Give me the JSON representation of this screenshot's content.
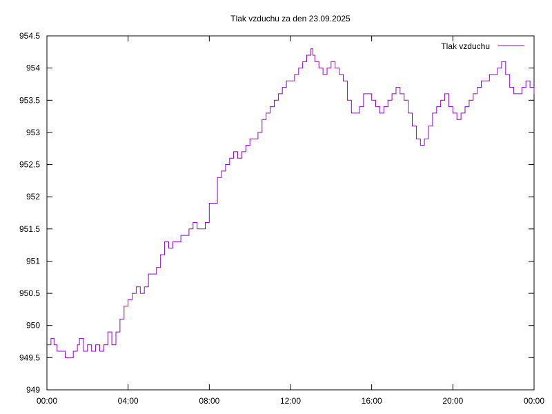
{
  "chart_data": {
    "type": "line",
    "title": "Tlak vzduchu za den 23.09.2025",
    "xlabel": "",
    "ylabel": "",
    "xlim": [
      0,
      24
    ],
    "ylim": [
      949,
      954.5
    ],
    "grid": false,
    "legend_position": "top-right",
    "x_ticks": [
      {
        "value": 0,
        "label": "00:00"
      },
      {
        "value": 4,
        "label": "04:00"
      },
      {
        "value": 8,
        "label": "08:00"
      },
      {
        "value": 12,
        "label": "12:00"
      },
      {
        "value": 16,
        "label": "16:00"
      },
      {
        "value": 20,
        "label": "20:00"
      },
      {
        "value": 24,
        "label": "00:00"
      }
    ],
    "y_ticks": [
      {
        "value": 949,
        "label": "949"
      },
      {
        "value": 949.5,
        "label": "949.5"
      },
      {
        "value": 950,
        "label": "950"
      },
      {
        "value": 950.5,
        "label": "950.5"
      },
      {
        "value": 951,
        "label": "951"
      },
      {
        "value": 951.5,
        "label": "951.5"
      },
      {
        "value": 952,
        "label": "952"
      },
      {
        "value": 952.5,
        "label": "952.5"
      },
      {
        "value": 953,
        "label": "953"
      },
      {
        "value": 953.5,
        "label": "953.5"
      },
      {
        "value": 954,
        "label": "954"
      },
      {
        "value": 954.5,
        "label": "954.5"
      }
    ],
    "series": [
      {
        "name": "Tlak vzduchu",
        "color": "#9400d3",
        "x": [
          0,
          0.2,
          0.35,
          0.5,
          0.7,
          0.9,
          1.0,
          1.1,
          1.3,
          1.5,
          1.6,
          1.8,
          2.0,
          2.2,
          2.4,
          2.6,
          2.8,
          3.0,
          3.2,
          3.4,
          3.6,
          3.8,
          4.0,
          4.2,
          4.4,
          4.6,
          4.8,
          5.0,
          5.2,
          5.4,
          5.6,
          5.8,
          6.0,
          6.2,
          6.4,
          6.6,
          6.8,
          7.0,
          7.2,
          7.4,
          7.6,
          7.8,
          8.0,
          8.2,
          8.4,
          8.6,
          8.8,
          9.0,
          9.2,
          9.4,
          9.6,
          9.8,
          10.0,
          10.2,
          10.4,
          10.6,
          10.8,
          11.0,
          11.2,
          11.4,
          11.6,
          11.8,
          12.0,
          12.2,
          12.4,
          12.6,
          12.8,
          13.0,
          13.1,
          13.2,
          13.4,
          13.6,
          13.8,
          14.0,
          14.1,
          14.2,
          14.4,
          14.6,
          14.8,
          15.0,
          15.2,
          15.4,
          15.6,
          15.8,
          16.0,
          16.2,
          16.4,
          16.6,
          16.8,
          17.0,
          17.2,
          17.4,
          17.6,
          17.8,
          18.0,
          18.2,
          18.4,
          18.6,
          18.8,
          19.0,
          19.2,
          19.4,
          19.6,
          19.8,
          20.0,
          20.2,
          20.4,
          20.6,
          20.8,
          21.0,
          21.2,
          21.4,
          21.6,
          21.8,
          22.0,
          22.2,
          22.4,
          22.6,
          22.8,
          23.0,
          23.2,
          23.4,
          23.6,
          23.8,
          24.0
        ],
        "y": [
          949.7,
          949.8,
          949.7,
          949.6,
          949.6,
          949.5,
          949.5,
          949.5,
          949.6,
          949.7,
          949.8,
          949.6,
          949.7,
          949.6,
          949.7,
          949.6,
          949.7,
          949.9,
          949.7,
          949.9,
          950.1,
          950.3,
          950.4,
          950.5,
          950.6,
          950.5,
          950.6,
          950.8,
          950.8,
          950.9,
          951.1,
          951.3,
          951.2,
          951.3,
          951.3,
          951.4,
          951.4,
          951.5,
          951.6,
          951.5,
          951.5,
          951.6,
          951.9,
          951.9,
          952.3,
          952.4,
          952.5,
          952.6,
          952.7,
          952.6,
          952.7,
          952.8,
          952.9,
          952.9,
          953.0,
          953.2,
          953.3,
          953.4,
          953.5,
          953.6,
          953.7,
          953.8,
          953.8,
          953.9,
          954.0,
          954.1,
          954.2,
          954.3,
          954.2,
          954.1,
          954.0,
          953.9,
          954.0,
          954.1,
          954.1,
          954.0,
          953.9,
          953.8,
          953.5,
          953.3,
          953.3,
          953.4,
          953.6,
          953.6,
          953.5,
          953.4,
          953.3,
          953.4,
          953.5,
          953.6,
          953.7,
          953.6,
          953.5,
          953.3,
          953.1,
          952.9,
          952.8,
          952.9,
          953.1,
          953.3,
          953.4,
          953.5,
          953.6,
          953.4,
          953.3,
          953.2,
          953.3,
          953.4,
          953.5,
          953.6,
          953.7,
          953.8,
          953.8,
          953.9,
          953.9,
          954.0,
          954.1,
          953.9,
          953.7,
          953.6,
          953.6,
          953.7,
          953.8,
          953.7,
          953.6
        ]
      }
    ]
  }
}
